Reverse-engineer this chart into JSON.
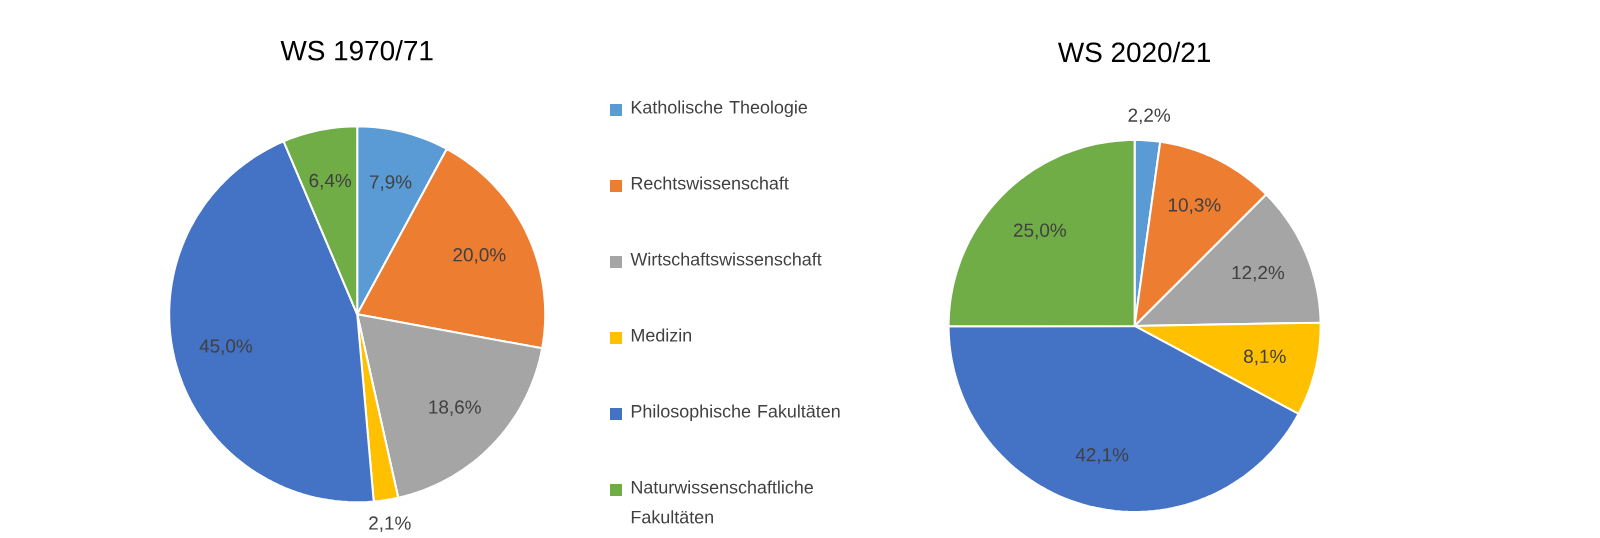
{
  "chart_data": [
    {
      "type": "pie",
      "title": "WS 1970/71",
      "categories": [
        "Katholische Theologie",
        "Rechtswissenschaft",
        "Wirtschaftswissenschaft",
        "Medizin",
        "Philosophische Fakultäten",
        "Naturwissenschaftliche Fakultäten"
      ],
      "values": [
        7.9,
        20.0,
        18.6,
        2.1,
        45.0,
        6.4
      ],
      "value_labels": [
        "7,9%",
        "20,0%",
        "18,6%",
        "2,1%",
        "45,0%",
        "6,4%"
      ],
      "colors": [
        "#5b9bd5",
        "#ed7d31",
        "#a5a5a5",
        "#ffc000",
        "#4472c4",
        "#70ad47"
      ],
      "legend": "right"
    },
    {
      "type": "pie",
      "title": "WS 2020/21",
      "categories": [
        null,
        null,
        null,
        null,
        null,
        null
      ],
      "values": [
        2.2,
        10.3,
        12.2,
        8.1,
        42.1,
        25.0
      ],
      "value_labels": [
        "2,2%",
        "10,3%",
        "12,2%",
        "8,1%",
        "42,1%",
        "25,0%"
      ],
      "colors": [
        "#5b9bd5",
        "#ed7d31",
        "#a5a5a5",
        "#ffc000",
        "#4472c4",
        "#70ad47"
      ]
    }
  ]
}
